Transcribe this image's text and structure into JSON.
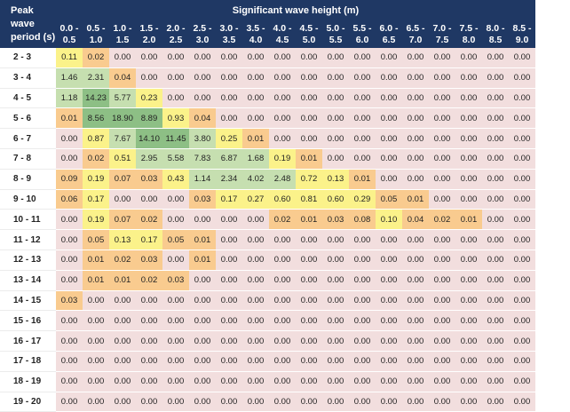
{
  "chart_data": {
    "type": "heatmap",
    "title": "Significant wave height (m)",
    "ylabel": "Peak wave period (s)",
    "x_categories": [
      "0.0 - 0.5",
      "0.5 - 1.0",
      "1.0 - 1.5",
      "1.5 - 2.0",
      "2.0 - 2.5",
      "2.5 - 3.0",
      "3.0 - 3.5",
      "3.5 - 4.0",
      "4.0 - 4.5",
      "4.5 - 5.0",
      "5.0 - 5.5",
      "5.5 - 6.0",
      "6.0 - 6.5",
      "6.5 - 7.0",
      "7.0 - 7.5",
      "7.5 - 8.0",
      "8.0 - 8.5",
      "8.5 - 9.0"
    ],
    "y_categories": [
      "2 - 3",
      "3 - 4",
      "4 - 5",
      "5 - 6",
      "6 - 7",
      "7 - 8",
      "8 - 9",
      "9 - 10",
      "10 - 11",
      "11 - 12",
      "12 - 13",
      "13 - 14",
      "14 - 15",
      "15 - 16",
      "16 - 17",
      "17 - 18",
      "18 - 19",
      "19 - 20"
    ],
    "values": [
      [
        "0.11",
        "0.02",
        "0.00",
        "0.00",
        "0.00",
        "0.00",
        "0.00",
        "0.00",
        "0.00",
        "0.00",
        "0.00",
        "0.00",
        "0.00",
        "0.00",
        "0.00",
        "0.00",
        "0.00",
        "0.00"
      ],
      [
        "1.46",
        "2.31",
        "0.04",
        "0.00",
        "0.00",
        "0.00",
        "0.00",
        "0.00",
        "0.00",
        "0.00",
        "0.00",
        "0.00",
        "0.00",
        "0.00",
        "0.00",
        "0.00",
        "0.00",
        "0.00"
      ],
      [
        "1.18",
        "14.23",
        "5.77",
        "0.23",
        "0.00",
        "0.00",
        "0.00",
        "0.00",
        "0.00",
        "0.00",
        "0.00",
        "0.00",
        "0.00",
        "0.00",
        "0.00",
        "0.00",
        "0.00",
        "0.00"
      ],
      [
        "0.01",
        "8.56",
        "18.90",
        "8.89",
        "0.93",
        "0.04",
        "0.00",
        "0.00",
        "0.00",
        "0.00",
        "0.00",
        "0.00",
        "0.00",
        "0.00",
        "0.00",
        "0.00",
        "0.00",
        "0.00"
      ],
      [
        "0.00",
        "0.87",
        "7.67",
        "14.10",
        "11.45",
        "3.80",
        "0.25",
        "0.01",
        "0.00",
        "0.00",
        "0.00",
        "0.00",
        "0.00",
        "0.00",
        "0.00",
        "0.00",
        "0.00",
        "0.00"
      ],
      [
        "0.00",
        "0.02",
        "0.51",
        "2.95",
        "5.58",
        "7.83",
        "6.87",
        "1.68",
        "0.19",
        "0.01",
        "0.00",
        "0.00",
        "0.00",
        "0.00",
        "0.00",
        "0.00",
        "0.00",
        "0.00"
      ],
      [
        "0.09",
        "0.19",
        "0.07",
        "0.03",
        "0.43",
        "1.14",
        "2.34",
        "4.02",
        "2.48",
        "0.72",
        "0.13",
        "0.01",
        "0.00",
        "0.00",
        "0.00",
        "0.00",
        "0.00",
        "0.00"
      ],
      [
        "0.06",
        "0.17",
        "0.00",
        "0.00",
        "0.00",
        "0.03",
        "0.17",
        "0.27",
        "0.60",
        "0.81",
        "0.60",
        "0.29",
        "0.05",
        "0.01",
        "0.00",
        "0.00",
        "0.00",
        "0.00"
      ],
      [
        "0.00",
        "0.19",
        "0.07",
        "0.02",
        "0.00",
        "0.00",
        "0.00",
        "0.00",
        "0.02",
        "0.01",
        "0.03",
        "0.08",
        "0.10",
        "0.04",
        "0.02",
        "0.01",
        "0.00",
        "0.00"
      ],
      [
        "0.00",
        "0.05",
        "0.13",
        "0.17",
        "0.05",
        "0.01",
        "0.00",
        "0.00",
        "0.00",
        "0.00",
        "0.00",
        "0.00",
        "0.00",
        "0.00",
        "0.00",
        "0.00",
        "0.00",
        "0.00"
      ],
      [
        "0.00",
        "0.01",
        "0.02",
        "0.03",
        "0.00",
        "0.01",
        "0.00",
        "0.00",
        "0.00",
        "0.00",
        "0.00",
        "0.00",
        "0.00",
        "0.00",
        "0.00",
        "0.00",
        "0.00",
        "0.00"
      ],
      [
        "0.00",
        "0.01",
        "0.01",
        "0.02",
        "0.03",
        "0.00",
        "0.00",
        "0.00",
        "0.00",
        "0.00",
        "0.00",
        "0.00",
        "0.00",
        "0.00",
        "0.00",
        "0.00",
        "0.00",
        "0.00"
      ],
      [
        "0.03",
        "0.00",
        "0.00",
        "0.00",
        "0.00",
        "0.00",
        "0.00",
        "0.00",
        "0.00",
        "0.00",
        "0.00",
        "0.00",
        "0.00",
        "0.00",
        "0.00",
        "0.00",
        "0.00",
        "0.00"
      ],
      [
        "0.00",
        "0.00",
        "0.00",
        "0.00",
        "0.00",
        "0.00",
        "0.00",
        "0.00",
        "0.00",
        "0.00",
        "0.00",
        "0.00",
        "0.00",
        "0.00",
        "0.00",
        "0.00",
        "0.00",
        "0.00"
      ],
      [
        "0.00",
        "0.00",
        "0.00",
        "0.00",
        "0.00",
        "0.00",
        "0.00",
        "0.00",
        "0.00",
        "0.00",
        "0.00",
        "0.00",
        "0.00",
        "0.00",
        "0.00",
        "0.00",
        "0.00",
        "0.00"
      ],
      [
        "0.00",
        "0.00",
        "0.00",
        "0.00",
        "0.00",
        "0.00",
        "0.00",
        "0.00",
        "0.00",
        "0.00",
        "0.00",
        "0.00",
        "0.00",
        "0.00",
        "0.00",
        "0.00",
        "0.00",
        "0.00"
      ],
      [
        "0.00",
        "0.00",
        "0.00",
        "0.00",
        "0.00",
        "0.00",
        "0.00",
        "0.00",
        "0.00",
        "0.00",
        "0.00",
        "0.00",
        "0.00",
        "0.00",
        "0.00",
        "0.00",
        "0.00",
        "0.00"
      ],
      [
        "0.00",
        "0.00",
        "0.00",
        "0.00",
        "0.00",
        "0.00",
        "0.00",
        "0.00",
        "0.00",
        "0.00",
        "0.00",
        "0.00",
        "0.00",
        "0.00",
        "0.00",
        "0.00",
        "0.00",
        "0.00"
      ]
    ],
    "color_scale": {
      "zero": "#f2dede",
      "low": "#f9cb8f",
      "mid": "#fbf28a",
      "high": "#c6dfb0",
      "max": "#8dbf85"
    },
    "header_color": "#1f3864"
  },
  "header": {
    "corner_label": "Peak wave period (s)",
    "title": "Significant wave height (m)"
  }
}
